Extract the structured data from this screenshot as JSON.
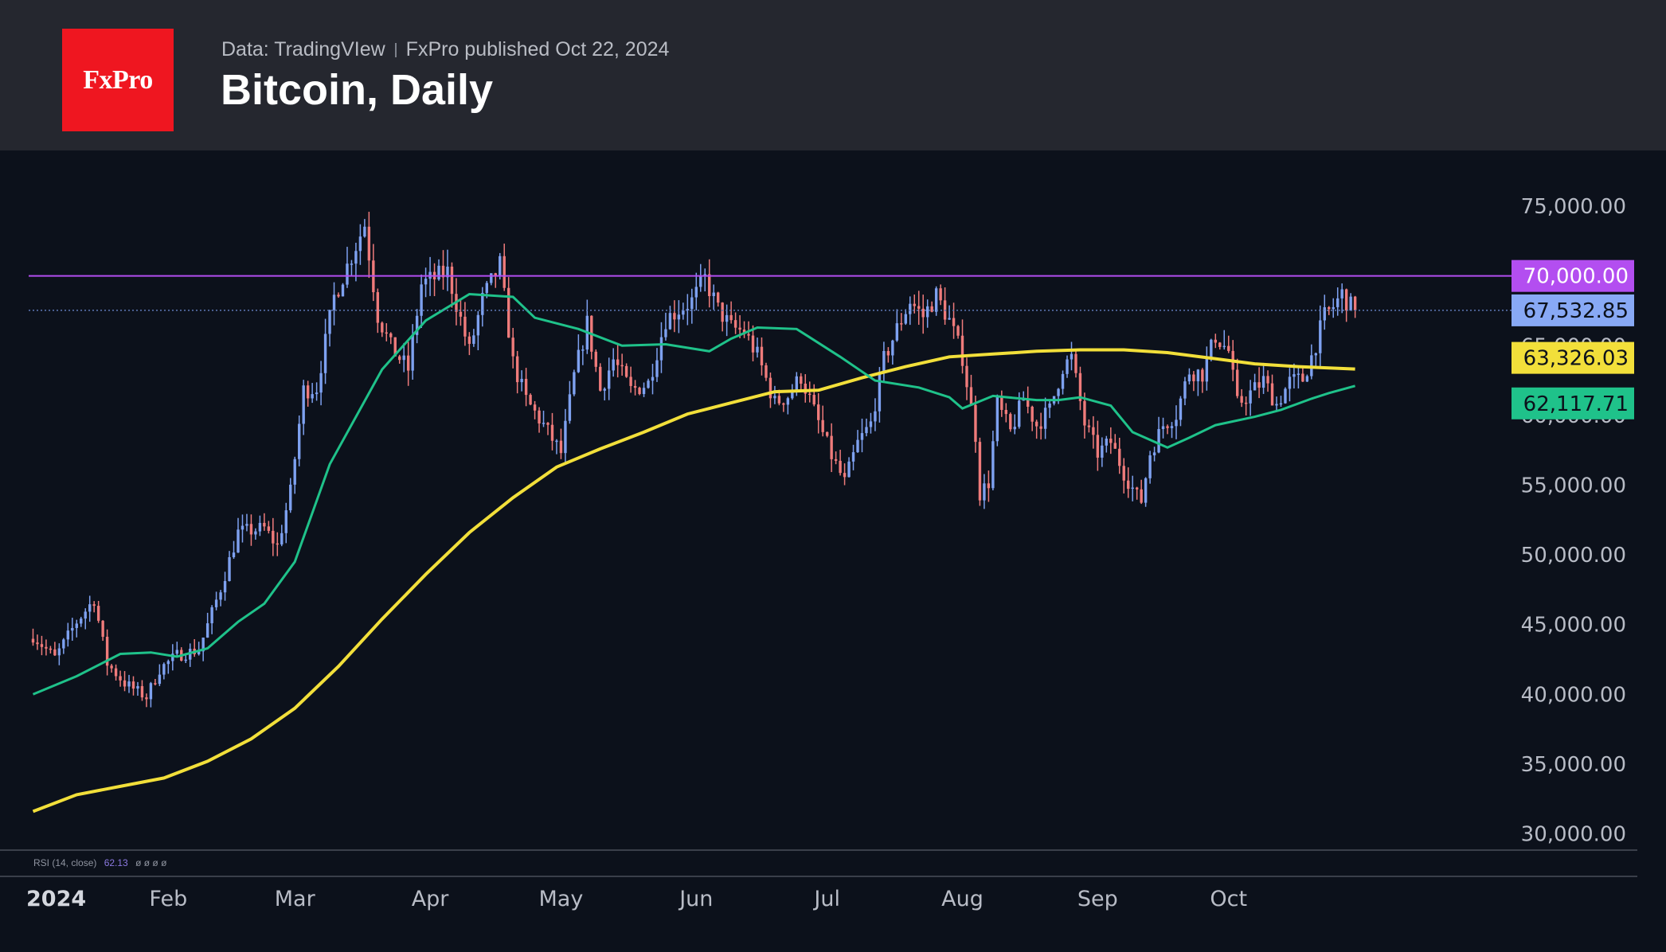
{
  "header": {
    "logo_text": "FxPro",
    "source": "Data: TradingVIew",
    "published": "FxPro published Oct 22, 2024",
    "title": "Bitcoin, Daily"
  },
  "indicator_label": {
    "name": "RSI (14, close)",
    "value": "62.13",
    "placeholders": "ø ø ø ø"
  },
  "colors": {
    "up": "#7ea1f0",
    "down": "#ef7b7b",
    "ma_short": "#1fc28a",
    "ma_long": "#f2df3a",
    "level": "#b34ef0",
    "last": "#88a9f5"
  },
  "chart_data": {
    "type": "candlestick",
    "title": "Bitcoin, Daily",
    "ylim": [
      29000,
      79000
    ],
    "yticks": [
      30000,
      35000,
      40000,
      45000,
      50000,
      55000,
      60000,
      65000,
      70000,
      75000
    ],
    "ytick_labels": [
      "30,000.00",
      "35,000.00",
      "40,000.00",
      "45,000.00",
      "50,000.00",
      "55,000.00",
      "60,000.00",
      "65,000.00",
      "70,000.00",
      "75,000.00"
    ],
    "xticks": [
      {
        "label": "2024",
        "day": 0
      },
      {
        "label": "Feb",
        "day": 31
      },
      {
        "label": "Mar",
        "day": 60
      },
      {
        "label": "Apr",
        "day": 91
      },
      {
        "label": "May",
        "day": 121
      },
      {
        "label": "Jun",
        "day": 152
      },
      {
        "label": "Jul",
        "day": 182
      },
      {
        "label": "Aug",
        "day": 213
      },
      {
        "label": "Sep",
        "day": 244
      },
      {
        "label": "Oct",
        "day": 274
      }
    ],
    "x_start_day": -1,
    "x_end_day": 333,
    "horizontal_level": {
      "value": 70000,
      "label": "70,000.00"
    },
    "last_price": {
      "value": 67532.85,
      "label": "67,532.85"
    },
    "ma_long_value": {
      "value": 63326.03,
      "label": "63,326.03"
    },
    "ma_short_value": {
      "value": 62117.71,
      "label": "62,117.71"
    },
    "close_anchors": [
      [
        0,
        44200
      ],
      [
        5,
        42600
      ],
      [
        10,
        45200
      ],
      [
        14,
        46800
      ],
      [
        17,
        42200
      ],
      [
        21,
        40800
      ],
      [
        26,
        39800
      ],
      [
        29,
        41800
      ],
      [
        33,
        42800
      ],
      [
        38,
        43200
      ],
      [
        43,
        47600
      ],
      [
        47,
        51600
      ],
      [
        53,
        51900
      ],
      [
        56,
        50600
      ],
      [
        59,
        54500
      ],
      [
        62,
        61800
      ],
      [
        65,
        62000
      ],
      [
        69,
        68500
      ],
      [
        74,
        72200
      ],
      [
        76,
        73700
      ],
      [
        79,
        67200
      ],
      [
        82,
        64900
      ],
      [
        86,
        63300
      ],
      [
        89,
        69400
      ],
      [
        95,
        70300
      ],
      [
        100,
        64600
      ],
      [
        103,
        68300
      ],
      [
        107,
        70800
      ],
      [
        110,
        63800
      ],
      [
        113,
        61100
      ],
      [
        117,
        59300
      ],
      [
        121,
        57300
      ],
      [
        124,
        62800
      ],
      [
        127,
        66600
      ],
      [
        130,
        61800
      ],
      [
        133,
        64000
      ],
      [
        137,
        61800
      ],
      [
        141,
        62300
      ],
      [
        145,
        66900
      ],
      [
        148,
        67600
      ],
      [
        151,
        68200
      ],
      [
        154,
        69800
      ],
      [
        157,
        67600
      ],
      [
        160,
        66300
      ],
      [
        163,
        66000
      ],
      [
        166,
        64300
      ],
      [
        170,
        60900
      ],
      [
        173,
        61400
      ],
      [
        176,
        62800
      ],
      [
        179,
        60300
      ],
      [
        183,
        57100
      ],
      [
        186,
        55200
      ],
      [
        189,
        58000
      ],
      [
        192,
        59400
      ],
      [
        195,
        64000
      ],
      [
        198,
        66200
      ],
      [
        201,
        68200
      ],
      [
        204,
        67100
      ],
      [
        207,
        68600
      ],
      [
        210,
        66800
      ],
      [
        213,
        64200
      ],
      [
        216,
        58600
      ],
      [
        217,
        54400
      ],
      [
        219,
        55200
      ],
      [
        221,
        60800
      ],
      [
        224,
        58800
      ],
      [
        227,
        61200
      ],
      [
        230,
        59300
      ],
      [
        233,
        60400
      ],
      [
        236,
        63500
      ],
      [
        238,
        64100
      ],
      [
        241,
        59400
      ],
      [
        244,
        57300
      ],
      [
        247,
        58100
      ],
      [
        250,
        55900
      ],
      [
        253,
        54200
      ],
      [
        254,
        53900
      ],
      [
        256,
        57300
      ],
      [
        259,
        59300
      ],
      [
        262,
        60100
      ],
      [
        265,
        63200
      ],
      [
        268,
        63000
      ],
      [
        271,
        65700
      ],
      [
        274,
        64600
      ],
      [
        276,
        60800
      ],
      [
        279,
        61600
      ],
      [
        282,
        62500
      ],
      [
        285,
        60800
      ],
      [
        288,
        62400
      ],
      [
        291,
        62600
      ],
      [
        293,
        64200
      ],
      [
        296,
        67100
      ],
      [
        298,
        67800
      ],
      [
        300,
        68700
      ],
      [
        302,
        67800
      ],
      [
        303,
        67532.85
      ]
    ],
    "ma_short_points": [
      [
        0,
        40000
      ],
      [
        10,
        41300
      ],
      [
        20,
        42900
      ],
      [
        27,
        43000
      ],
      [
        33,
        42700
      ],
      [
        40,
        43300
      ],
      [
        47,
        45200
      ],
      [
        53,
        46500
      ],
      [
        60,
        49500
      ],
      [
        68,
        56500
      ],
      [
        80,
        63300
      ],
      [
        90,
        66800
      ],
      [
        100,
        68700
      ],
      [
        110,
        68500
      ],
      [
        115,
        67000
      ],
      [
        125,
        66200
      ],
      [
        135,
        65000
      ],
      [
        145,
        65100
      ],
      [
        155,
        64600
      ],
      [
        160,
        65500
      ],
      [
        166,
        66300
      ],
      [
        175,
        66200
      ],
      [
        185,
        64200
      ],
      [
        193,
        62500
      ],
      [
        203,
        62000
      ],
      [
        210,
        61300
      ],
      [
        213,
        60500
      ],
      [
        220,
        61400
      ],
      [
        230,
        61100
      ],
      [
        235,
        61100
      ],
      [
        240,
        61300
      ],
      [
        247,
        60700
      ],
      [
        252,
        58800
      ],
      [
        260,
        57700
      ],
      [
        265,
        58400
      ],
      [
        271,
        59300
      ],
      [
        280,
        59900
      ],
      [
        286,
        60400
      ],
      [
        293,
        61200
      ],
      [
        297,
        61600
      ],
      [
        303,
        62117.71
      ]
    ],
    "ma_long_points": [
      [
        0,
        31600
      ],
      [
        10,
        32800
      ],
      [
        20,
        33400
      ],
      [
        30,
        34000
      ],
      [
        40,
        35200
      ],
      [
        50,
        36800
      ],
      [
        60,
        39000
      ],
      [
        70,
        42000
      ],
      [
        80,
        45400
      ],
      [
        90,
        48600
      ],
      [
        100,
        51600
      ],
      [
        110,
        54100
      ],
      [
        120,
        56300
      ],
      [
        130,
        57600
      ],
      [
        140,
        58800
      ],
      [
        150,
        60100
      ],
      [
        160,
        60900
      ],
      [
        170,
        61700
      ],
      [
        180,
        61800
      ],
      [
        190,
        62700
      ],
      [
        200,
        63500
      ],
      [
        210,
        64200
      ],
      [
        220,
        64400
      ],
      [
        230,
        64600
      ],
      [
        240,
        64700
      ],
      [
        250,
        64700
      ],
      [
        260,
        64500
      ],
      [
        270,
        64100
      ],
      [
        280,
        63700
      ],
      [
        290,
        63500
      ],
      [
        303,
        63326.03
      ]
    ]
  }
}
